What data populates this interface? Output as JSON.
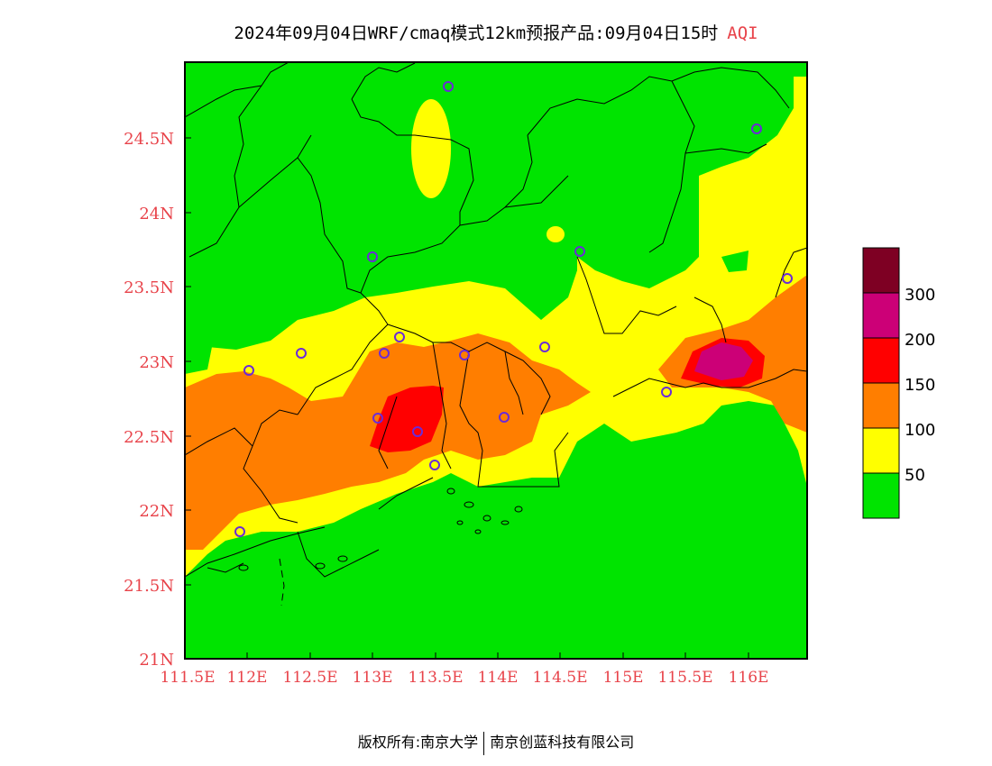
{
  "title": {
    "main": "2024年09月04日WRF/cmaq模式12km预报产品:09月04日15时",
    "variable": "AQI"
  },
  "axes": {
    "y_ticks": [
      "24.5N",
      "24N",
      "23.5N",
      "23N",
      "22.5N",
      "22N",
      "21.5N",
      "21N"
    ],
    "x_ticks": [
      "111.5E",
      "112E",
      "112.5E",
      "113E",
      "113.5E",
      "114E",
      "114.5E",
      "115E",
      "115.5E",
      "116E"
    ]
  },
  "colorbar": {
    "labels": [
      "50",
      "100",
      "150",
      "200",
      "300"
    ],
    "colors": [
      "#00e400",
      "#ffff00",
      "#ff7e00",
      "#ff0000",
      "#cc0077",
      "#7e0023"
    ]
  },
  "footer": {
    "left": "版权所有:南京大学",
    "right": "南京创蓝科技有限公司"
  }
}
